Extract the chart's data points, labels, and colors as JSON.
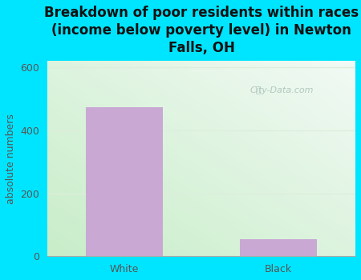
{
  "categories": [
    "White",
    "Black"
  ],
  "values": [
    473,
    55
  ],
  "bar_color": "#c9a8d4",
  "title": "Breakdown of poor residents within races\n(income below poverty level) in Newton\nFalls, OH",
  "ylabel": "absolute numbers",
  "ylim": [
    0,
    620
  ],
  "yticks": [
    0,
    200,
    400,
    600
  ],
  "title_fontsize": 12,
  "label_fontsize": 9,
  "tick_fontsize": 9,
  "title_color": "#111111",
  "axis_label_color": "#555555",
  "tick_color": "#555555",
  "bg_outer_color": "#00e5ff",
  "watermark_text": "City-Data.com",
  "grid_color": "#ddeedc",
  "bg_left_bottom": "#c8edc8",
  "bg_right_top": "#f0f8f5"
}
